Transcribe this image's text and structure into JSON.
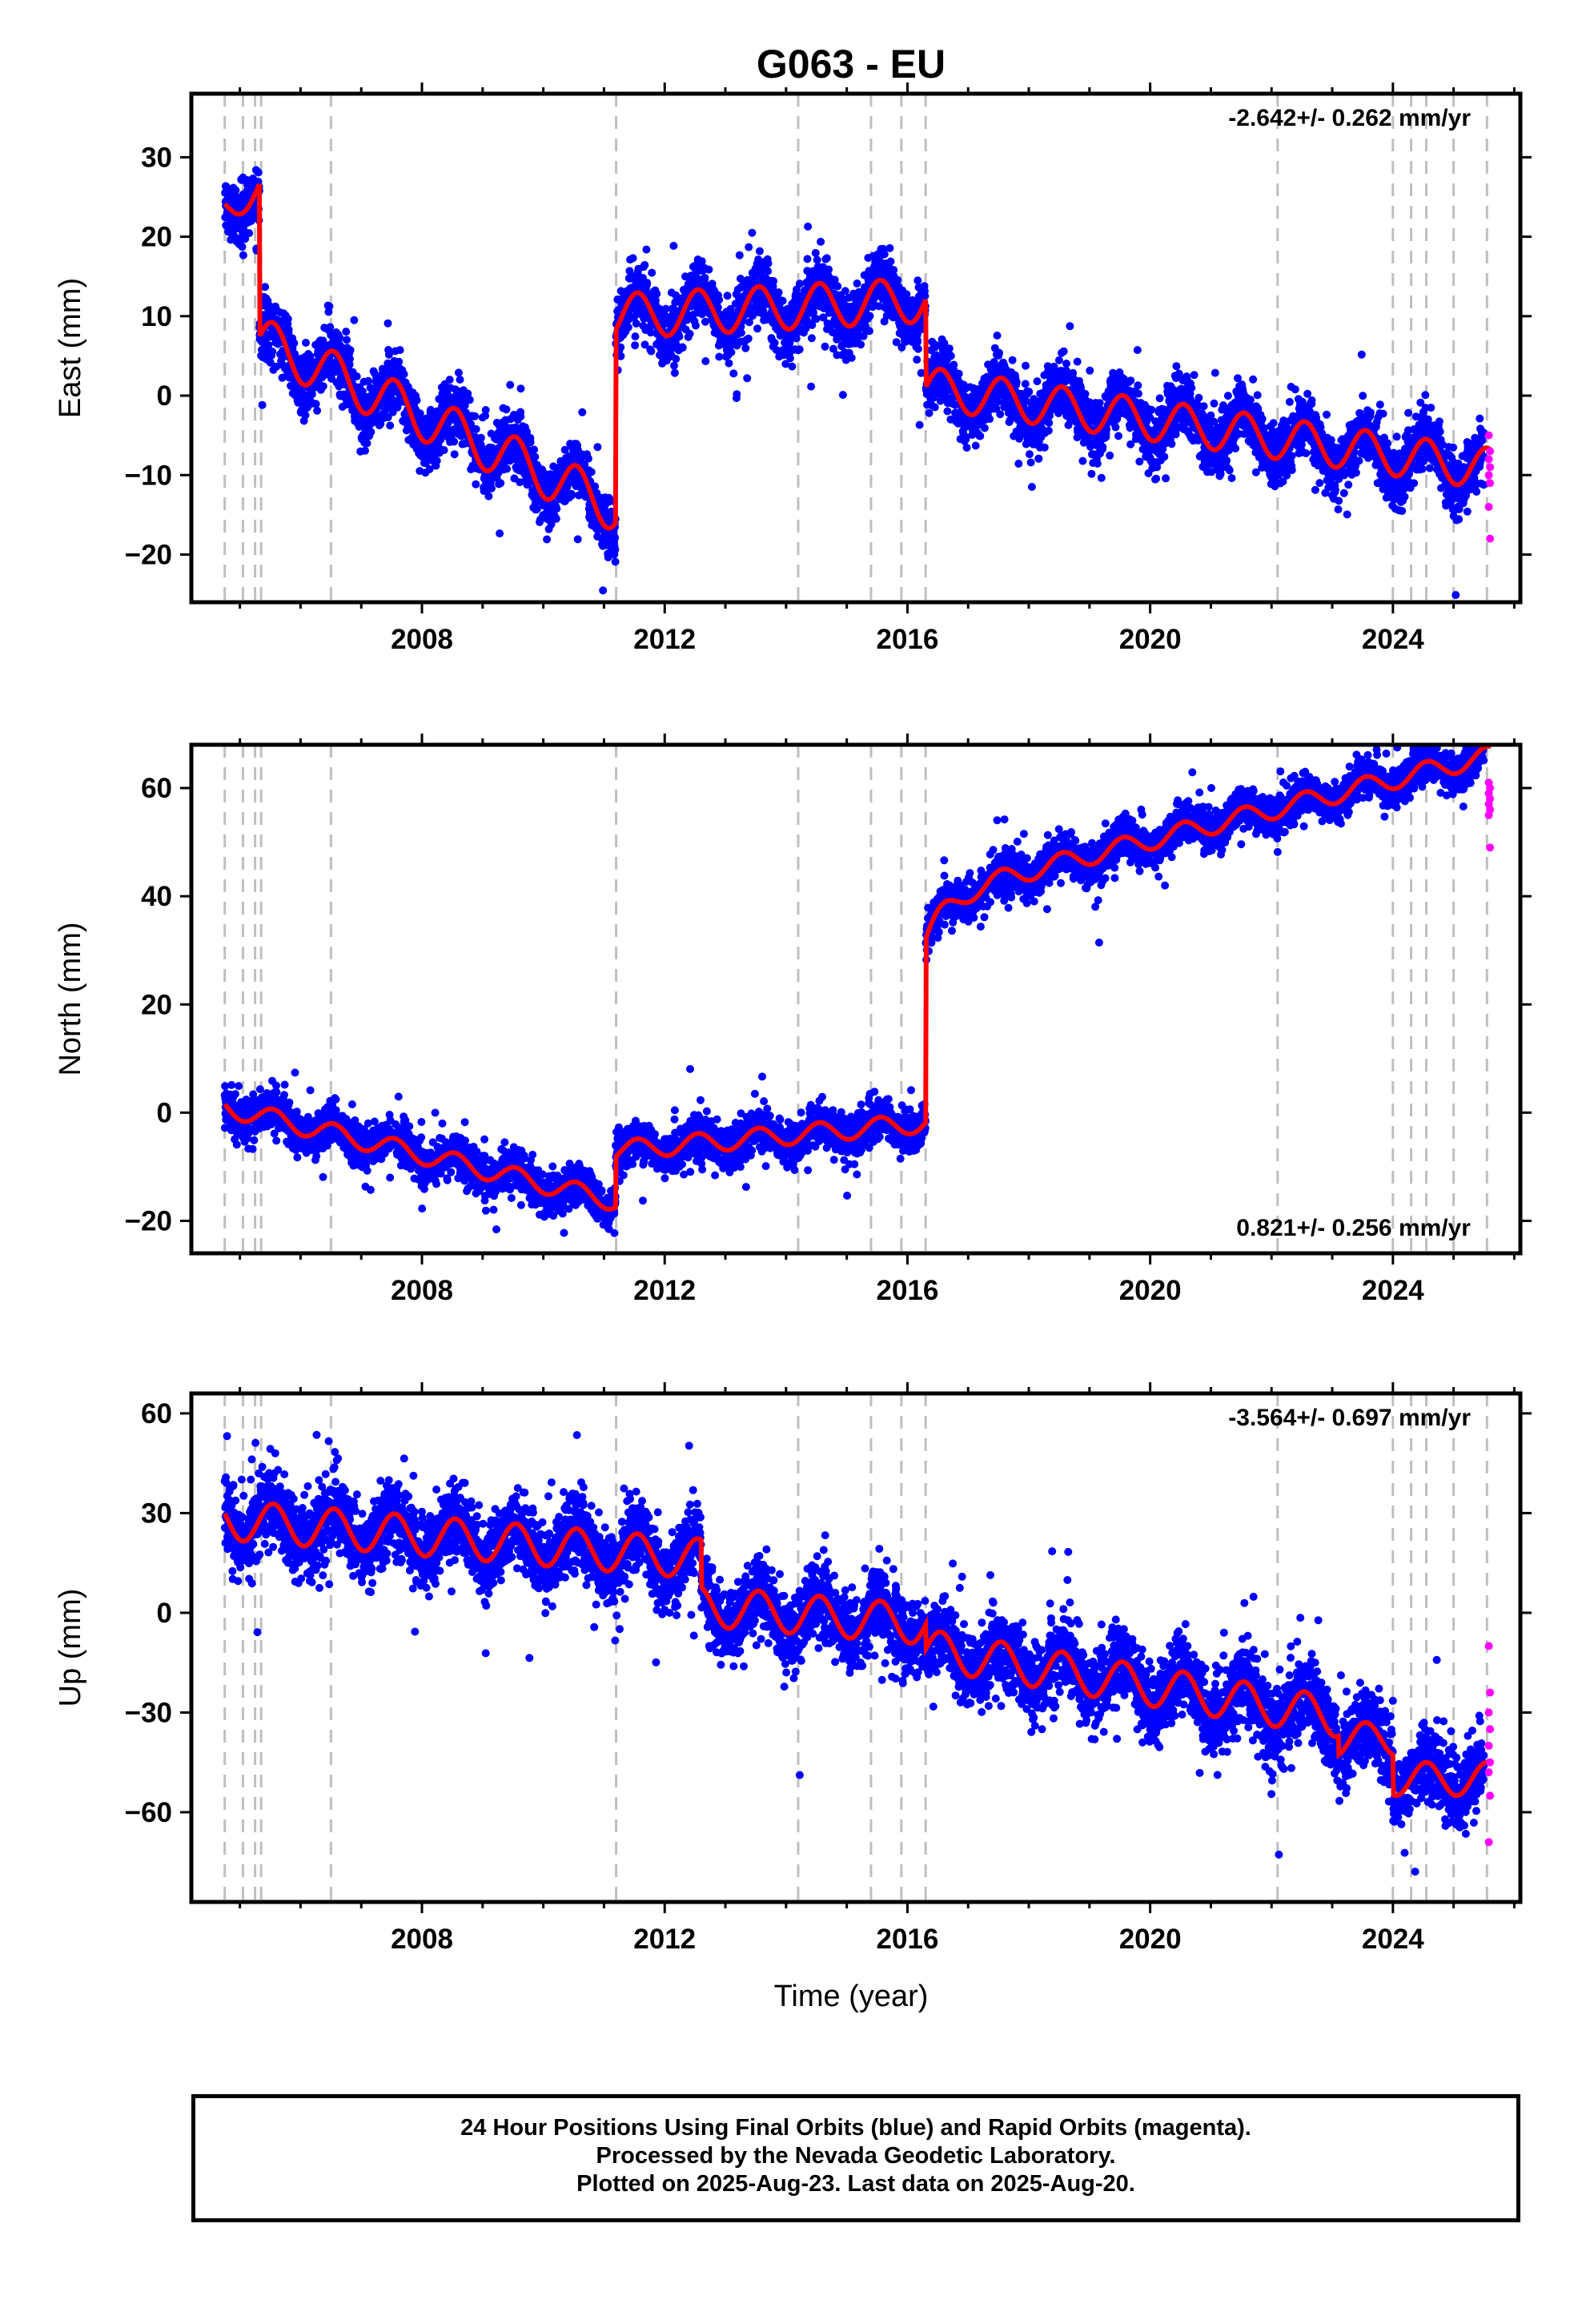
{
  "title": "G063 - EU",
  "xlabel": "Time (year)",
  "caption": {
    "line1": "24 Hour Positions Using Final Orbits (blue) and Rapid Orbits (magenta).",
    "line2": "Processed by the Nevada Geodetic Laboratory.",
    "line3": "Plotted on 2025-Aug-23. Last data on 2025-Aug-20."
  },
  "colors": {
    "final_orbits": "#0000ff",
    "rapid_orbits": "#ff00ff",
    "model": "#ff0000",
    "event_lines": "#bfbfbf"
  },
  "chart_data": [
    {
      "type": "scatter",
      "panel": "east",
      "ylabel": "East (mm)",
      "rate_label": "-2.642+/- 0.262 mm/yr",
      "rate_position": "top-right",
      "xlim": [
        2004.2,
        2026.1
      ],
      "ylim": [
        -26,
        38
      ],
      "x_ticks": [
        2008,
        2012,
        2016,
        2020,
        2024
      ],
      "y_ticks": [
        -20,
        -10,
        0,
        10,
        20,
        30
      ],
      "event_lines": [
        2004.75,
        2005.05,
        2005.25,
        2005.35,
        2006.5,
        2011.2,
        2014.2,
        2015.4,
        2015.9,
        2016.3,
        2022.1,
        2024.0,
        2024.3,
        2024.55,
        2025.0,
        2025.55
      ],
      "model": {
        "breaks": [
          2005.32,
          2011.19,
          2016.3
        ],
        "segments": [
          {
            "t0": 2004.75,
            "t1": 2005.32,
            "start": 23.5,
            "slope": 5.0,
            "amp": 2.0
          },
          {
            "t0": 2005.32,
            "t1": 2011.19,
            "start": 7.0,
            "slope": -3.6,
            "amp": 3.0
          },
          {
            "t0": 2011.19,
            "t1": 2016.3,
            "start": 10.0,
            "slope": 0.4,
            "amp": 2.8
          },
          {
            "t0": 2016.3,
            "t1": 2025.62,
            "start": 1.0,
            "slope": -1.1,
            "amp": 2.6
          }
        ]
      },
      "final_orbits_range": [
        2004.75,
        2025.5
      ],
      "scatter_sigma": 1.8,
      "rapid_orbits": [
        -5,
        -7,
        -8,
        -9,
        -10,
        -11,
        -14,
        -18
      ]
    },
    {
      "type": "scatter",
      "panel": "north",
      "ylabel": "North (mm)",
      "rate_label": "0.821+/- 0.256 mm/yr",
      "rate_position": "bottom-right",
      "xlim": [
        2004.2,
        2026.1
      ],
      "ylim": [
        -26,
        68
      ],
      "x_ticks": [
        2008,
        2012,
        2016,
        2020,
        2024
      ],
      "y_ticks": [
        -20,
        0,
        20,
        40,
        60
      ],
      "event_lines": [
        2004.75,
        2005.05,
        2005.25,
        2005.35,
        2006.5,
        2011.2,
        2014.2,
        2015.4,
        2015.9,
        2016.3,
        2022.1,
        2024.0,
        2024.3,
        2024.55,
        2025.0,
        2025.55
      ],
      "model": {
        "breaks": [
          2011.19,
          2016.3
        ],
        "segments": [
          {
            "t0": 2004.75,
            "t1": 2011.19,
            "start": 1.0,
            "slope": -2.7,
            "amp": 1.8
          },
          {
            "t0": 2011.19,
            "t1": 2016.3,
            "start": -7.0,
            "slope": 1.0,
            "amp": 1.8
          },
          {
            "t0": 2016.3,
            "t1": 2025.62,
            "start": 32.0,
            "slope": 2.8,
            "amp": 1.8,
            "postseismic": 8.0
          }
        ]
      },
      "final_orbits_range": [
        2004.75,
        2025.5
      ],
      "scatter_sigma": 1.8,
      "rapid_orbits": [
        61,
        60,
        59,
        58,
        57,
        56,
        55,
        49
      ]
    },
    {
      "type": "scatter",
      "panel": "up",
      "ylabel": "Up (mm)",
      "rate_label": "-3.564+/- 0.697 mm/yr",
      "rate_position": "top-right",
      "xlim": [
        2004.2,
        2026.1
      ],
      "ylim": [
        -87,
        66
      ],
      "x_ticks": [
        2008,
        2012,
        2016,
        2020,
        2024
      ],
      "y_ticks": [
        -60,
        -30,
        0,
        30,
        60
      ],
      "event_lines": [
        2004.75,
        2005.05,
        2005.25,
        2005.35,
        2006.5,
        2011.2,
        2014.2,
        2015.4,
        2015.9,
        2016.3,
        2022.1,
        2024.0,
        2024.3,
        2024.55,
        2025.0,
        2025.55
      ],
      "model": {
        "breaks": [
          2012.6,
          2016.3,
          2023.1,
          2024.0
        ],
        "segments": [
          {
            "t0": 2004.75,
            "t1": 2012.6,
            "start": 28.0,
            "slope": -1.5,
            "amp": 6.0
          },
          {
            "t0": 2012.6,
            "t1": 2016.3,
            "start": 2.0,
            "slope": -1.5,
            "amp": 6.0
          },
          {
            "t0": 2016.3,
            "t1": 2023.1,
            "start": -11.0,
            "slope": -3.0,
            "amp": 6.0
          },
          {
            "t0": 2023.1,
            "t1": 2024.0,
            "start": -38.0,
            "slope": 0.0,
            "amp": 5.0
          },
          {
            "t0": 2024.0,
            "t1": 2025.62,
            "start": -50.0,
            "slope": 0.0,
            "amp": 5.0
          }
        ]
      },
      "final_orbits_range": [
        2004.75,
        2025.5
      ],
      "scatter_sigma": 5.5,
      "rapid_orbits": [
        -10,
        -24,
        -30,
        -35,
        -40,
        -45,
        -48,
        -55,
        -69
      ]
    }
  ]
}
